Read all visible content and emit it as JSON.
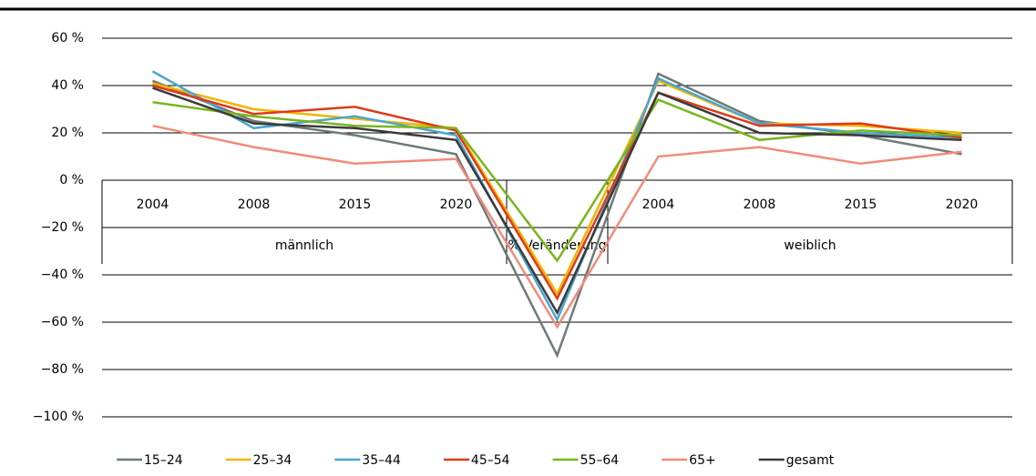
{
  "chart_data": {
    "type": "line",
    "category_groups": [
      {
        "name": "männlich",
        "categories": [
          "2004",
          "2008",
          "2015",
          "2020"
        ]
      },
      {
        "name": "% Veränderung",
        "categories": [
          null
        ]
      },
      {
        "name": "weiblich",
        "categories": [
          "2004",
          "2008",
          "2015",
          "2020"
        ]
      }
    ],
    "series": [
      {
        "name": "15–24",
        "color": "#6f7a76",
        "values": [
          42,
          25,
          19,
          11,
          -74,
          45,
          25,
          19,
          11
        ]
      },
      {
        "name": "25–34",
        "color": "#f0b400",
        "values": [
          41,
          30,
          26,
          22,
          -48,
          42,
          24,
          23,
          20
        ]
      },
      {
        "name": "35–44",
        "color": "#4aa6d0",
        "values": [
          46,
          22,
          27,
          19,
          -59,
          43,
          24,
          20,
          18
        ]
      },
      {
        "name": "45–54",
        "color": "#dc3a1a",
        "values": [
          40,
          28,
          31,
          21,
          -50,
          37,
          23,
          24,
          18
        ]
      },
      {
        "name": "55–64",
        "color": "#7ab51d",
        "values": [
          33,
          27,
          23,
          22,
          -34,
          34,
          17,
          21,
          19
        ]
      },
      {
        "name": "65+",
        "color": "#f08c7a",
        "values": [
          23,
          14,
          7,
          9,
          -62,
          10,
          14,
          7,
          12
        ]
      },
      {
        "name": "gesamt",
        "color": "#3a3a3a",
        "values": [
          39,
          24,
          22,
          17,
          -56,
          37,
          20,
          19,
          17
        ]
      }
    ],
    "ylim": [
      -100,
      60
    ],
    "yticks": [
      {
        "value": -100,
        "label": "−100 %"
      },
      {
        "value": -80,
        "label": "−80 %"
      },
      {
        "value": -60,
        "label": "−60 %"
      },
      {
        "value": -40,
        "label": "−40 %"
      },
      {
        "value": -20,
        "label": "−20 %"
      },
      {
        "value": 0,
        "label": "0 %"
      },
      {
        "value": 20,
        "label": "20 %"
      },
      {
        "value": 40,
        "label": "40 %"
      },
      {
        "value": 60,
        "label": "60 %"
      }
    ],
    "grid": true
  }
}
